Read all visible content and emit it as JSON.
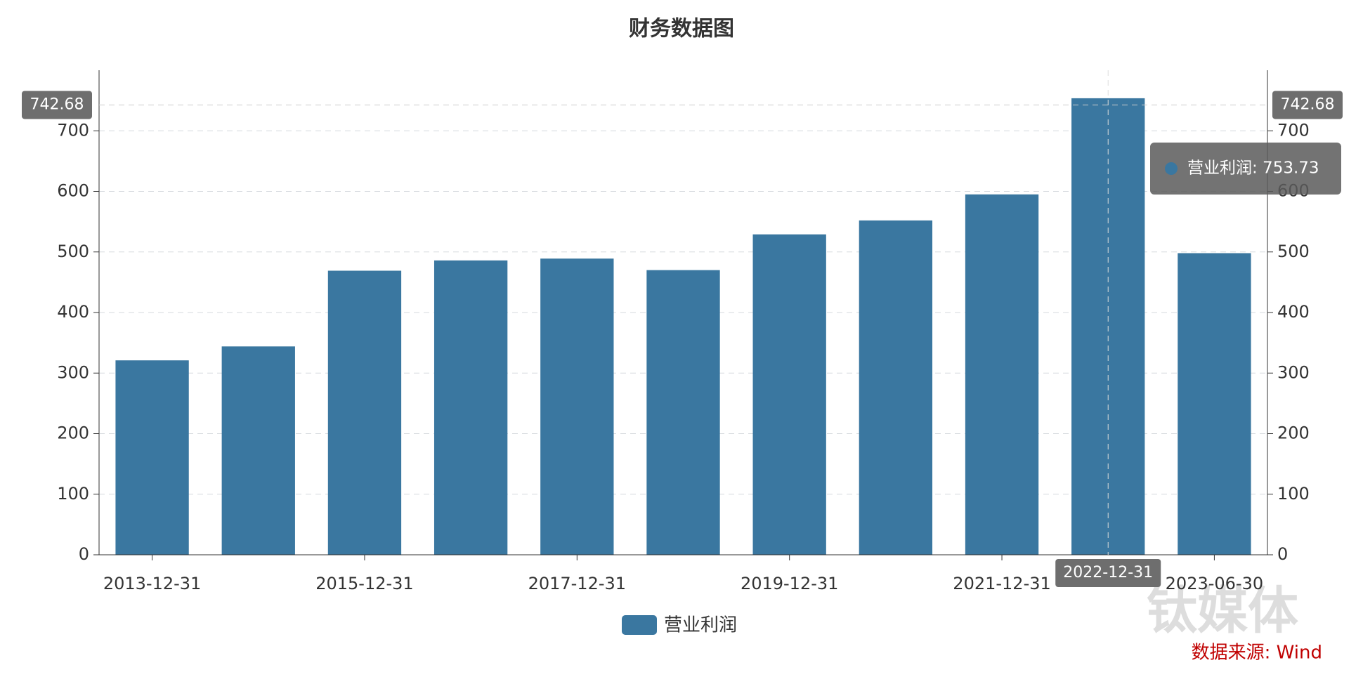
{
  "chart_data": {
    "type": "bar",
    "title": "财务数据图",
    "categories": [
      "2013-12-31",
      null,
      "2015-12-31",
      null,
      "2017-12-31",
      null,
      "2019-12-31",
      null,
      "2021-12-31",
      "2022-12-31",
      "2023-06-30"
    ],
    "series": [
      {
        "name": "营业利润",
        "color": "#3a77a0",
        "values": [
          321,
          344,
          469,
          486,
          489,
          470,
          529,
          552,
          595,
          753.73,
          498
        ]
      }
    ],
    "ylim": [
      0,
      800
    ],
    "yticks": [
      0,
      100,
      200,
      300,
      400,
      500,
      600,
      700
    ],
    "grid": true,
    "pointer_value": 742.68,
    "pointer_category_index": 9,
    "tooltip": "营业利润: 753.73",
    "source": "数据来源: Wind",
    "watermark": "钛媒体"
  }
}
